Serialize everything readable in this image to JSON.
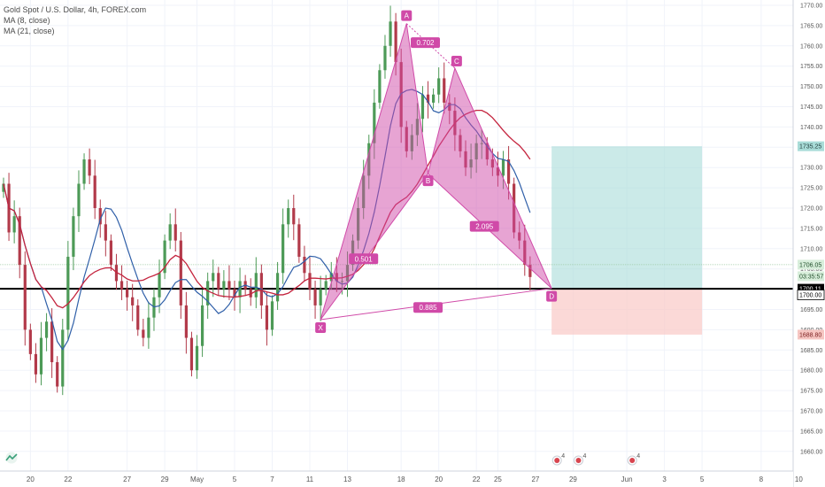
{
  "legend": {
    "title": "Gold Spot / U.S. Dollar, 4h, FOREX.com",
    "ma8": "MA (8, close)",
    "ma21": "MA (21, close)"
  },
  "colors": {
    "up": "#4d9a57",
    "down": "#b23a4a",
    "ma8": "#2f5fa8",
    "ma21": "#c4243e",
    "pattern": "#d04aa8",
    "profit": "#a9dcd8",
    "loss": "#f9c9c6"
  },
  "chart_data": {
    "type": "candlestick",
    "title": "Gold Spot / U.S. Dollar, 4h, FOREX.com",
    "ylim": [
      1657,
      1772
    ],
    "y_ticks": [
      1660,
      1665,
      1670,
      1675,
      1680,
      1685,
      1690,
      1695,
      1700,
      1705,
      1710,
      1715,
      1720,
      1725,
      1730,
      1735,
      1740,
      1745,
      1750,
      1755,
      1760,
      1765,
      1770
    ],
    "x_ticks": [
      {
        "label": "20",
        "bar": 5
      },
      {
        "label": "22",
        "bar": 12
      },
      {
        "label": "27",
        "bar": 23
      },
      {
        "label": "29",
        "bar": 30
      },
      {
        "label": "May",
        "bar": 36
      },
      {
        "label": "5",
        "bar": 43
      },
      {
        "label": "7",
        "bar": 50
      },
      {
        "label": "11",
        "bar": 57
      },
      {
        "label": "13",
        "bar": 64
      },
      {
        "label": "18",
        "bar": 74
      },
      {
        "label": "20",
        "bar": 81
      },
      {
        "label": "22",
        "bar": 88
      },
      {
        "label": "25",
        "bar": 92
      },
      {
        "label": "27",
        "bar": 99
      },
      {
        "label": "29",
        "bar": 106
      },
      {
        "label": "Jun",
        "bar": 116
      },
      {
        "label": "3",
        "bar": 123
      },
      {
        "label": "5",
        "bar": 130
      },
      {
        "label": "8",
        "bar": 141
      },
      {
        "label": "10",
        "bar": 148
      }
    ],
    "closes": [
      1726,
      1714,
      1718,
      1706,
      1690,
      1684,
      1679,
      1688,
      1692,
      1682,
      1676,
      1690,
      1708,
      1718,
      1726,
      1732,
      1728,
      1720,
      1716,
      1712,
      1706,
      1702,
      1700,
      1698,
      1696,
      1690,
      1688,
      1693,
      1698,
      1704,
      1712,
      1716,
      1712,
      1696,
      1688,
      1680,
      1686,
      1696,
      1702,
      1704,
      1700,
      1702,
      1700,
      1698,
      1702,
      1700,
      1698,
      1704,
      1696,
      1690,
      1697,
      1704,
      1716,
      1720,
      1716,
      1708,
      1704,
      1700,
      1696,
      1700,
      1702,
      1704,
      1702,
      1702,
      1706,
      1712,
      1720,
      1728,
      1736,
      1746,
      1754,
      1760,
      1766,
      1756,
      1740,
      1734,
      1738,
      1742,
      1748,
      1746,
      1748,
      1752,
      1746,
      1744,
      1738,
      1734,
      1730,
      1732,
      1736,
      1736,
      1732,
      1730,
      1728,
      1732,
      1726,
      1714,
      1712,
      1706,
      1703
    ],
    "ma8_label": "MA (8, close)",
    "ma21_label": "MA (21, close)",
    "pattern": {
      "points": [
        {
          "name": "X",
          "bar": 59,
          "price": 1692.5
        },
        {
          "name": "A",
          "bar": 75,
          "price": 1765.5
        },
        {
          "name": "B",
          "bar": 79,
          "price": 1728.5
        },
        {
          "name": "C",
          "bar": 84,
          "price": 1754.5
        },
        {
          "name": "D",
          "bar": 102,
          "price": 1700.2
        }
      ],
      "ratios": [
        {
          "label": "0.501",
          "bar": 67,
          "price": 1707.5
        },
        {
          "label": "0.702",
          "bar": 78.5,
          "price": 1760.8
        },
        {
          "label": "2.095",
          "bar": 89.5,
          "price": 1715.5
        },
        {
          "label": "0.885",
          "bar": 79,
          "price": 1695.5
        }
      ]
    },
    "position": {
      "entry": 1700.11,
      "target": 1735.25,
      "stop": 1688.8,
      "bar_start": 102,
      "bar_end": 130
    },
    "price_labels": [
      {
        "value": 1735.25,
        "label": "1735.25",
        "style": "teal"
      },
      {
        "value": 1706.05,
        "label": "1706.05",
        "style": "green"
      },
      {
        "value": 1703.2,
        "label": "03:35:57",
        "style": "green"
      },
      {
        "value": 1700.11,
        "label": "1700.11",
        "style": "black"
      },
      {
        "value": 1698.6,
        "label": "1700.00",
        "style": "outline"
      },
      {
        "value": 1688.8,
        "label": "1688.80",
        "style": "red"
      }
    ],
    "horizontal_line": 1700.11,
    "events": [
      {
        "bar": 103,
        "label": "4"
      },
      {
        "bar": 107,
        "label": "4"
      },
      {
        "bar": 117,
        "label": "4"
      }
    ]
  }
}
